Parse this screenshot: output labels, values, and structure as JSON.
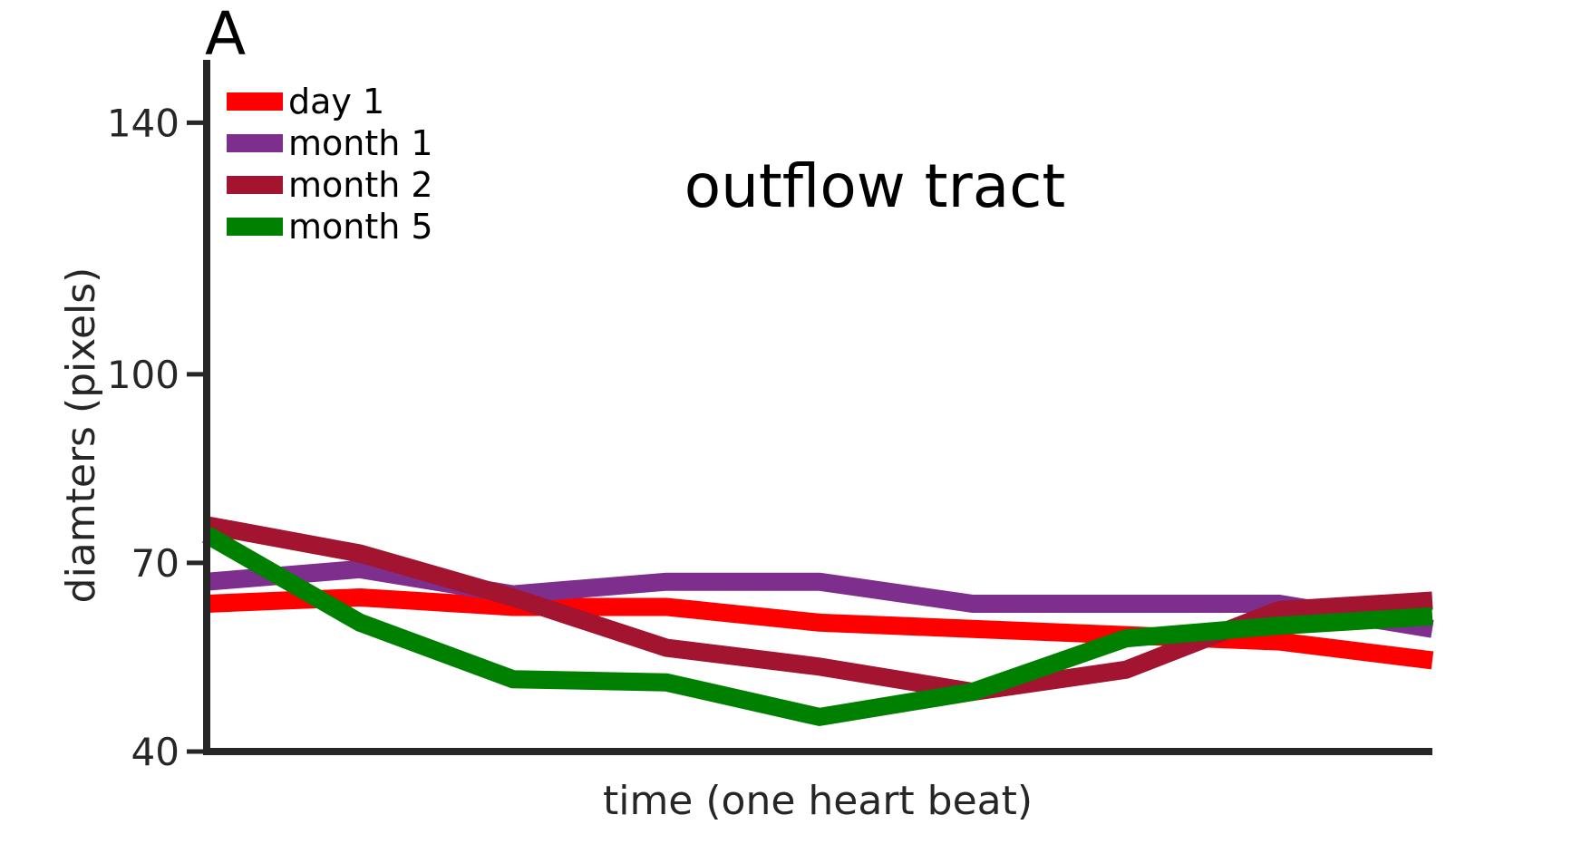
{
  "panel_label": "A",
  "chart_data": {
    "type": "line",
    "title": "outflow tract",
    "xlabel": "time (one heart beat)",
    "ylabel": "diamters (pixels)",
    "ylim": [
      40,
      150
    ],
    "yticks": [
      40,
      70,
      100,
      140
    ],
    "xlim": [
      1,
      9
    ],
    "x": [
      1,
      2,
      3,
      4,
      5,
      6,
      7,
      8,
      9
    ],
    "grid": false,
    "legend_position": "top-left",
    "series": [
      {
        "name": "day 1",
        "color": "#ff0000",
        "values": [
          63.5,
          64.5,
          63.0,
          63.0,
          60.5,
          59.5,
          58.5,
          57.5,
          54.5
        ]
      },
      {
        "name": "month 1",
        "color": "#7e2f8e",
        "values": [
          67.0,
          69.0,
          65.0,
          67.0,
          67.0,
          63.5,
          63.5,
          63.5,
          59.5
        ]
      },
      {
        "name": "month 2",
        "color": "#a2142f",
        "values": [
          76.0,
          71.5,
          64.5,
          56.5,
          53.5,
          49.5,
          53.0,
          62.5,
          64.0
        ]
      },
      {
        "name": "month 5",
        "color": "#008000",
        "values": [
          74.5,
          60.5,
          51.5,
          51.0,
          45.5,
          49.5,
          58.0,
          60.0,
          61.5
        ]
      }
    ]
  }
}
